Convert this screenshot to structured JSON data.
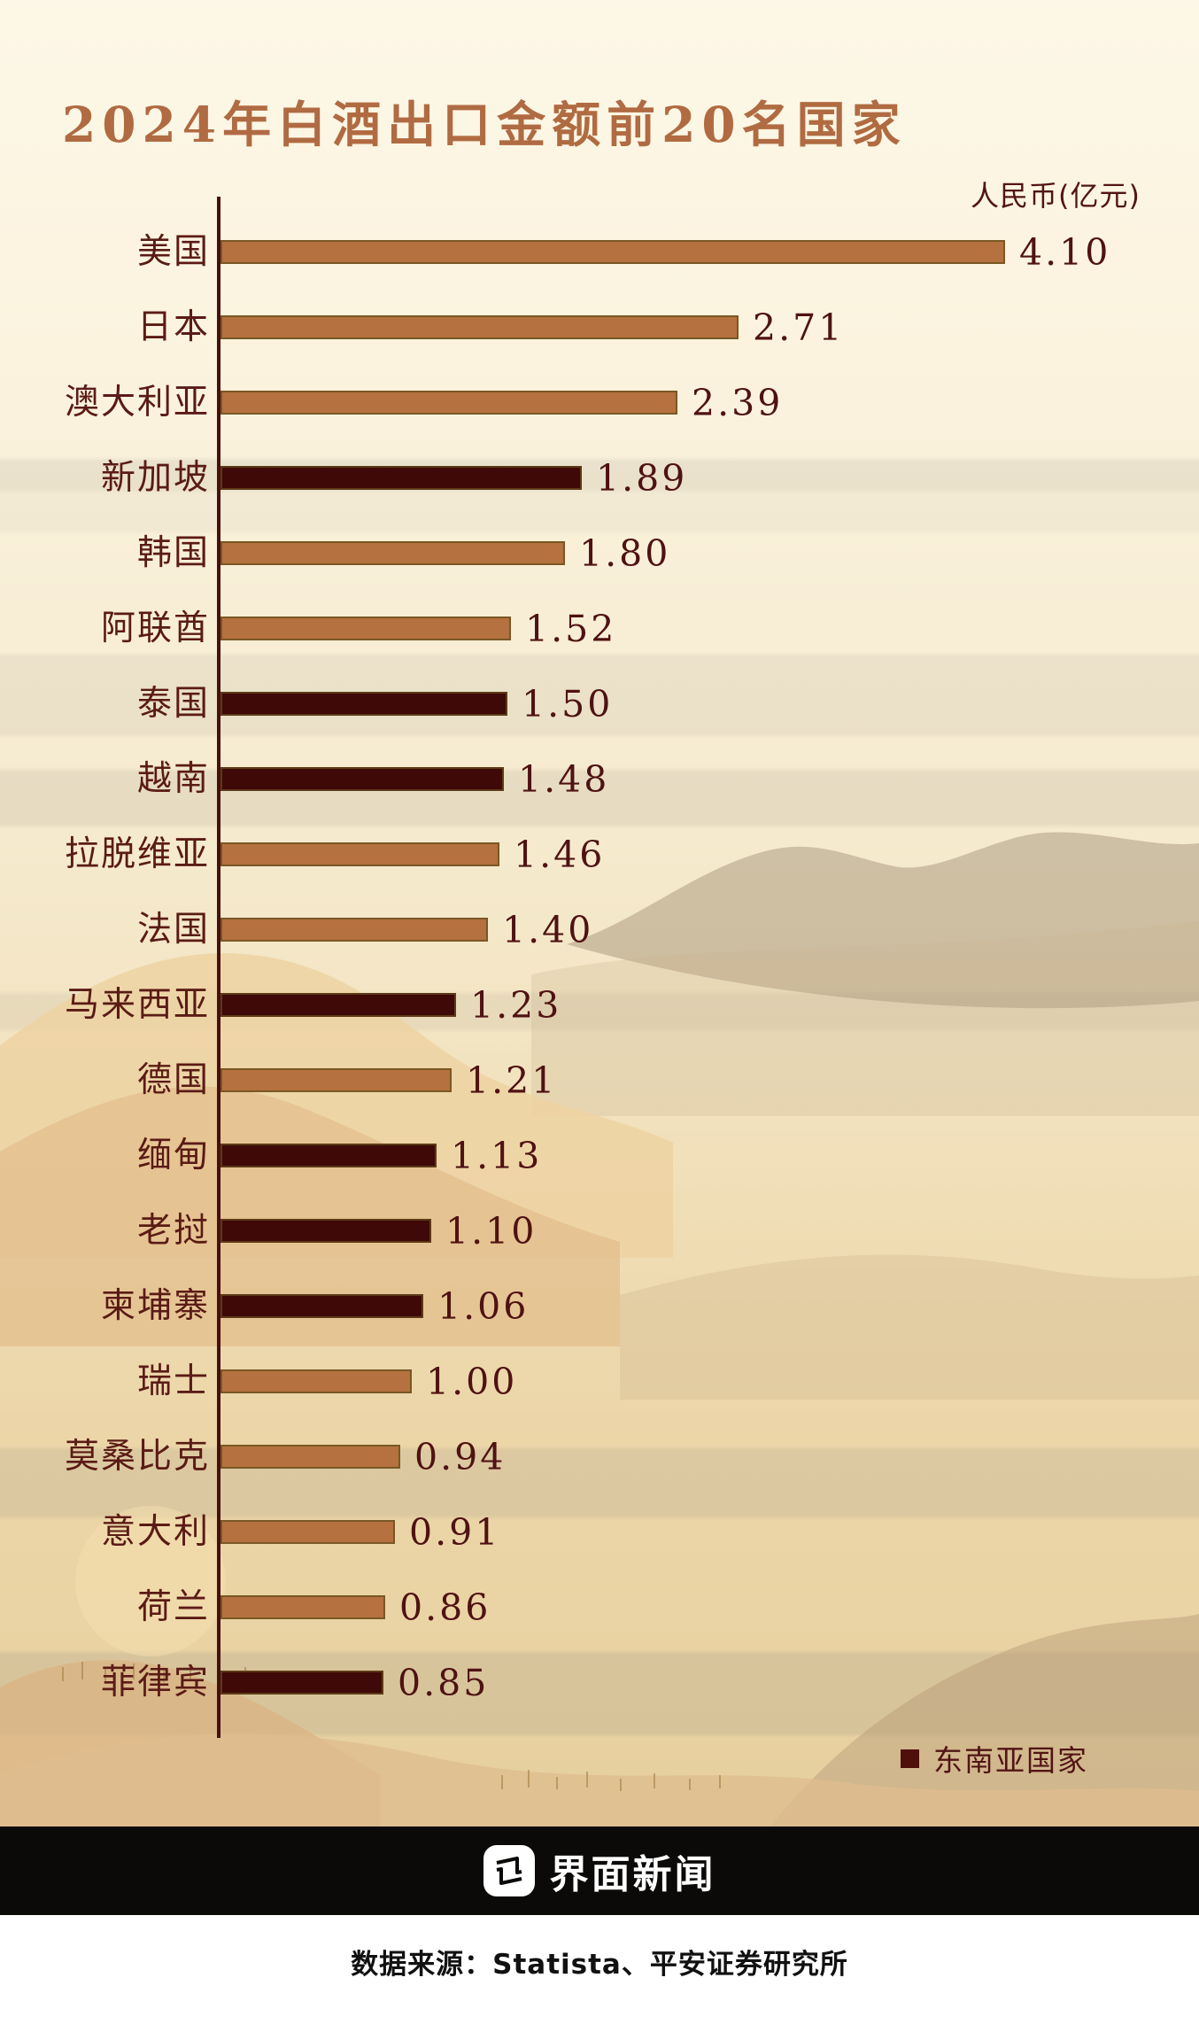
{
  "title": "2024年白酒出口金额前20名国家",
  "unit_label": "人民币(亿元)",
  "legend": {
    "label": "东南亚国家",
    "swatch_color": "#4f0f0b"
  },
  "footer": {
    "brand": "界面新闻",
    "source": "数据来源：Statista、平安证券研究所"
  },
  "colors": {
    "background_cream": "#fbf3de",
    "background_tan": "#e9d2a2",
    "title_brown": "#b06b42",
    "label_maroon": "#5a1b15",
    "value_maroon": "#4f1212",
    "bar_default": "#b5713f",
    "bar_southeast_asia": "#3e0907",
    "axis": "#46100c",
    "footer_bar": "#0b0a08"
  },
  "chart_data": {
    "type": "bar",
    "orientation": "horizontal",
    "title": "2024年白酒出口金额前20名国家",
    "unit": "人民币(亿元)",
    "xlim": [
      0,
      4.5
    ],
    "grid": false,
    "legend_position": "bottom-right",
    "legend_entries": [
      {
        "label": "东南亚国家",
        "color": "#3e0907"
      }
    ],
    "rows": [
      {
        "country": "美国",
        "value": 4.1,
        "label": "4.10",
        "southeast_asia": false
      },
      {
        "country": "日本",
        "value": 2.71,
        "label": "2.71",
        "southeast_asia": false
      },
      {
        "country": "澳大利亚",
        "value": 2.39,
        "label": "2.39",
        "southeast_asia": false
      },
      {
        "country": "新加坡",
        "value": 1.89,
        "label": "1.89",
        "southeast_asia": true
      },
      {
        "country": "韩国",
        "value": 1.8,
        "label": "1.80",
        "southeast_asia": false
      },
      {
        "country": "阿联酋",
        "value": 1.52,
        "label": "1.52",
        "southeast_asia": false
      },
      {
        "country": "泰国",
        "value": 1.5,
        "label": "1.50",
        "southeast_asia": true
      },
      {
        "country": "越南",
        "value": 1.48,
        "label": "1.48",
        "southeast_asia": true
      },
      {
        "country": "拉脱维亚",
        "value": 1.46,
        "label": "1.46",
        "southeast_asia": false
      },
      {
        "country": "法国",
        "value": 1.4,
        "label": "1.40",
        "southeast_asia": false
      },
      {
        "country": "马来西亚",
        "value": 1.23,
        "label": "1.23",
        "southeast_asia": true
      },
      {
        "country": "德国",
        "value": 1.21,
        "label": "1.21",
        "southeast_asia": false
      },
      {
        "country": "缅甸",
        "value": 1.13,
        "label": "1.13",
        "southeast_asia": true
      },
      {
        "country": "老挝",
        "value": 1.1,
        "label": "1.10",
        "southeast_asia": true
      },
      {
        "country": "柬埔寨",
        "value": 1.06,
        "label": "1.06",
        "southeast_asia": true
      },
      {
        "country": "瑞士",
        "value": 1.0,
        "label": "1.00",
        "southeast_asia": false
      },
      {
        "country": "莫桑比克",
        "value": 0.94,
        "label": "0.94",
        "southeast_asia": false
      },
      {
        "country": "意大利",
        "value": 0.91,
        "label": "0.91",
        "southeast_asia": false
      },
      {
        "country": "荷兰",
        "value": 0.86,
        "label": "0.86",
        "southeast_asia": false
      },
      {
        "country": "菲律宾",
        "value": 0.85,
        "label": "0.85",
        "southeast_asia": true
      }
    ]
  }
}
